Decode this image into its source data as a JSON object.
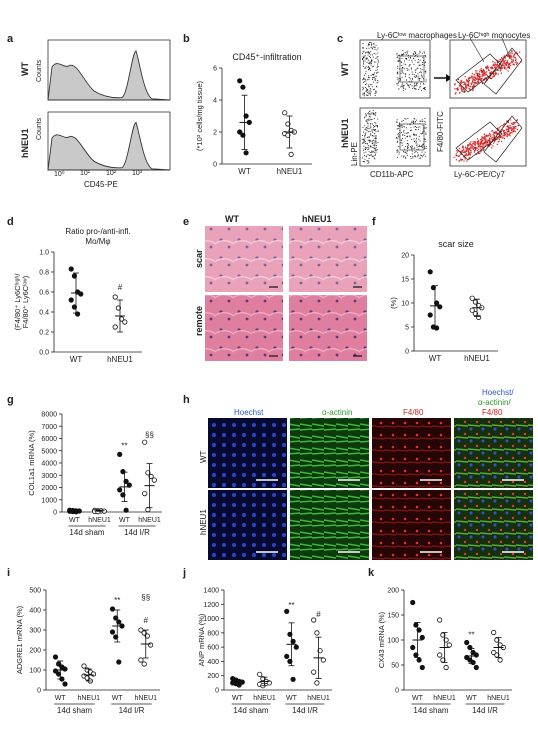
{
  "panels": {
    "a": {
      "letter": "a",
      "rows": [
        "WT",
        "hNEU1"
      ],
      "ylabel": "Counts",
      "xlabel": "CD45-PE",
      "ticks": [
        "10⁰",
        "10¹",
        "10²",
        "10³"
      ]
    },
    "b": {
      "letter": "b",
      "title": "CD45⁺-infiltration",
      "ylabel": "(*10³ cells/mg tissue)",
      "yticks": [
        "0",
        "2",
        "4",
        "6"
      ],
      "groups": [
        "WT",
        "hNEU1"
      ]
    },
    "c": {
      "letter": "c",
      "low_label": "Ly-6Cˡᵒʷ macrophages",
      "high_label": "Ly-6Cʰᶦᵍʰ monocytes",
      "rows": [
        "WT",
        "hNEU1"
      ],
      "ylabel_left": "Lin-PE",
      "xlabel_left": "CD11b-APC",
      "ylabel_right": "F4/80-FITC",
      "xlabel_right": "Ly-6C-PE/Cy7"
    },
    "d": {
      "letter": "d",
      "title1": "Ratio pro-/anti-infl.",
      "title2": "Mo/Mφ",
      "ylabel1": "(F4/80⁺ Ly6Cʰᶦᵍʰ/",
      "ylabel2": "F4/80⁺ Ly6Cˡᵒʷ)",
      "yticks": [
        "0.0",
        "0.2",
        "0.4",
        "0.6",
        "0.8",
        "1.0"
      ],
      "groups": [
        "WT",
        "hNEU1"
      ],
      "mark": "#"
    },
    "e": {
      "letter": "e",
      "cols": [
        "WT",
        "hNEU1"
      ],
      "rows": [
        "scar",
        "remote"
      ]
    },
    "f": {
      "letter": "f",
      "title": "scar size",
      "ylabel": "(%)",
      "yticks": [
        "0",
        "5",
        "10",
        "15",
        "20"
      ],
      "groups": [
        "WT",
        "hNEU1"
      ]
    },
    "g": {
      "letter": "g",
      "ylabel": "COL1a1 mRNA (%)",
      "yticks": [
        "0",
        "1000",
        "2000",
        "3000",
        "4000",
        "5000",
        "6000",
        "7000",
        "8000"
      ],
      "groups": [
        "WT",
        "hNEU1",
        "WT",
        "hNEU1"
      ],
      "cond": [
        "14d sham",
        "14d I/R"
      ],
      "marks": [
        "**",
        "§§"
      ]
    },
    "h": {
      "letter": "h",
      "channels": [
        "Hoechst",
        "α-actinin",
        "F4/80"
      ],
      "merge": [
        "Hoechst/",
        "α-actinin/",
        "F4/80"
      ],
      "rows": [
        "WT",
        "hNEU1"
      ]
    },
    "i": {
      "letter": "i",
      "ylabel": "ADGRE1 mRNA (%)",
      "yticks": [
        "0",
        "100",
        "200",
        "300",
        "400",
        "500"
      ],
      "groups": [
        "WT",
        "hNEU1",
        "WT",
        "hNEU1"
      ],
      "cond": [
        "14d sham",
        "14d I/R"
      ],
      "marks": [
        "**",
        "§§",
        "#"
      ]
    },
    "j": {
      "letter": "j",
      "ylabel": "ANP mRNA (%)",
      "yticks": [
        "0",
        "200",
        "400",
        "600",
        "800",
        "1000",
        "1200",
        "1400"
      ],
      "groups": [
        "WT",
        "hNEU1",
        "WT",
        "hNEU1"
      ],
      "cond": [
        "14d sham",
        "14d I/R"
      ],
      "marks": [
        "**",
        "#"
      ]
    },
    "k": {
      "letter": "k",
      "ylabel": "CX43 mRNA (%)",
      "yticks": [
        "0",
        "50",
        "100",
        "150",
        "200"
      ],
      "groups": [
        "WT",
        "hNEU1",
        "WT",
        "hNEU1"
      ],
      "cond": [
        "14d sham",
        "14d I/R"
      ],
      "marks": [
        "**"
      ]
    }
  },
  "chart_data": [
    {
      "panel": "b",
      "type": "scatter",
      "ylim": [
        0,
        6
      ],
      "series": [
        {
          "values": [
            5.2,
            4.8,
            3.0,
            2.6,
            2.0,
            1.8,
            0.7
          ]
        },
        {
          "values": [
            3.2,
            2.5,
            2.1,
            2.0,
            1.9,
            1.8,
            0.6
          ]
        }
      ],
      "mean": [
        2.6,
        2.0
      ],
      "sd": [
        1.7,
        1.0
      ]
    },
    {
      "panel": "d",
      "type": "scatter",
      "ylim": [
        0,
        1
      ],
      "series": [
        {
          "values": [
            0.83,
            0.76,
            0.6,
            0.58,
            0.52,
            0.45,
            0.38
          ]
        },
        {
          "values": [
            0.55,
            0.44,
            0.33,
            0.3,
            0.25
          ]
        }
      ],
      "mean": [
        0.59,
        0.36
      ],
      "sd": [
        0.2,
        0.16
      ]
    },
    {
      "panel": "f",
      "type": "scatter",
      "ylim": [
        0,
        20
      ],
      "series": [
        {
          "values": [
            16.5,
            13.2,
            10.0,
            9.2,
            7.5,
            5.0,
            4.8
          ]
        },
        {
          "values": [
            11.0,
            10.2,
            9.5,
            9.0,
            8.5,
            7.8,
            7.0
          ]
        }
      ],
      "mean": [
        9.4,
        9.0
      ],
      "sd": [
        4.2,
        1.8
      ]
    },
    {
      "panel": "g",
      "type": "scatter",
      "ylim": [
        0,
        8000
      ],
      "series": [
        {
          "values": [
            150,
            120,
            100,
            80,
            60,
            40,
            20
          ]
        },
        {
          "values": [
            140,
            110,
            90,
            70,
            50,
            30
          ]
        },
        {
          "values": [
            4700,
            3300,
            2500,
            2200,
            1800,
            1400,
            150
          ]
        },
        {
          "values": [
            5700,
            3200,
            2900,
            2600,
            1500,
            200
          ]
        }
      ],
      "mean": [
        100,
        100,
        2050,
        2150
      ],
      "sd": [
        50,
        45,
        1200,
        1800
      ]
    },
    {
      "panel": "i",
      "type": "scatter",
      "ylim": [
        0,
        500
      ],
      "series": [
        {
          "values": [
            165,
            130,
            115,
            105,
            95,
            80,
            55,
            30
          ]
        },
        {
          "values": [
            120,
            100,
            90,
            80,
            70,
            60,
            45
          ]
        },
        {
          "values": [
            405,
            360,
            340,
            320,
            290,
            265,
            140
          ]
        },
        {
          "values": [
            300,
            285,
            270,
            225,
            150,
            130
          ]
        }
      ],
      "mean": [
        100,
        75,
        320,
        230
      ],
      "sd": [
        45,
        30,
        80,
        70
      ]
    },
    {
      "panel": "j",
      "type": "scatter",
      "ylim": [
        0,
        1400
      ],
      "series": [
        {
          "values": [
            160,
            140,
            120,
            110,
            100,
            90,
            70
          ]
        },
        {
          "values": [
            220,
            160,
            120,
            100,
            80,
            60
          ]
        },
        {
          "values": [
            1100,
            780,
            680,
            600,
            470,
            400,
            150
          ]
        },
        {
          "values": [
            980,
            800,
            550,
            420,
            250,
            100
          ]
        }
      ],
      "mean": [
        110,
        120,
        640,
        450
      ],
      "sd": [
        30,
        60,
        300,
        290
      ]
    },
    {
      "panel": "k",
      "type": "scatter",
      "ylim": [
        0,
        200
      ],
      "series": [
        {
          "values": [
            175,
            130,
            120,
            105,
            85,
            70,
            60,
            45
          ]
        },
        {
          "values": [
            140,
            110,
            100,
            90,
            70,
            60,
            45
          ]
        },
        {
          "values": [
            95,
            85,
            75,
            70,
            65,
            60,
            55,
            45
          ]
        },
        {
          "values": [
            115,
            100,
            90,
            85,
            75,
            70,
            60
          ]
        }
      ],
      "mean": [
        100,
        85,
        68,
        85
      ],
      "sd": [
        35,
        30,
        15,
        20
      ]
    }
  ]
}
